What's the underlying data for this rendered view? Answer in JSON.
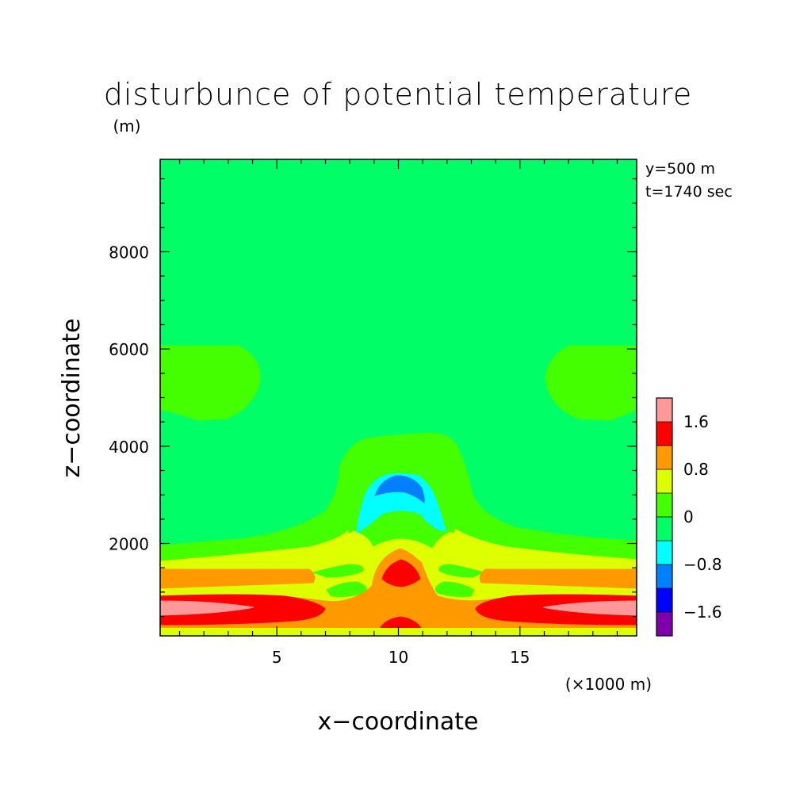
{
  "chart_data": {
    "type": "contour",
    "title": "disturbunce of potential temperature",
    "y_unit_label": "(m)",
    "xlabel": "x−coordinate",
    "ylabel": "z−coordinate",
    "x_unit_label": "(×1000 m)",
    "annotations": [
      "y=500 m",
      "t=1740 sec"
    ],
    "xlim": [
      0.2,
      19.8
    ],
    "ylim": [
      100,
      9900
    ],
    "x_ticks": [
      5,
      10,
      15
    ],
    "y_ticks": [
      2000,
      4000,
      6000,
      8000
    ],
    "y_tick_labels": [
      "2000",
      "4000",
      "6000",
      "8000"
    ],
    "colorbar": {
      "levels": [
        -2.0,
        -1.6,
        -1.2,
        -0.8,
        -0.4,
        0,
        0.4,
        0.8,
        1.2,
        1.6,
        2.0
      ],
      "tick_labels": [
        "1.6",
        "0.8",
        "0",
        "−0.8",
        "−1.6"
      ],
      "tick_values": [
        1.6,
        0.8,
        0,
        -0.8,
        -1.6
      ],
      "colors_bottom_to_top": [
        "#7f00aa",
        "#0000ff",
        "#0080ff",
        "#00ffff",
        "#00ff66",
        "#44ff00",
        "#ddff00",
        "#ff9900",
        "#ff0000",
        "#ff9999"
      ]
    },
    "regions": [
      {
        "level_range": [
          0.4,
          0.8
        ],
        "description": "band near surface, 0-1600 m"
      },
      {
        "level_range": [
          0.8,
          1.2
        ],
        "description": "band 400-1400 m"
      },
      {
        "level_range": [
          1.2,
          1.6
        ],
        "description": "band 400-900 m, core at x=10 km 1100-1600 m"
      },
      {
        "level_range": [
          1.6,
          2.0
        ],
        "description": "lateral cores near x=0-5 km and 15-20 km, 500-700 m"
      },
      {
        "level_range": [
          -0.8,
          -0.4
        ],
        "description": "cold bubble above x=10 km, 2200-3300 m"
      },
      {
        "level_range": [
          -1.2,
          -0.8
        ],
        "description": "core at x=10 km, 3000-3400 m"
      },
      {
        "level_range": [
          0,
          0.4
        ],
        "description": "lobes near x=0-4 km and 16-20 km at 4600-6100 m, dome over x=10 km up to 4300 m"
      }
    ]
  }
}
